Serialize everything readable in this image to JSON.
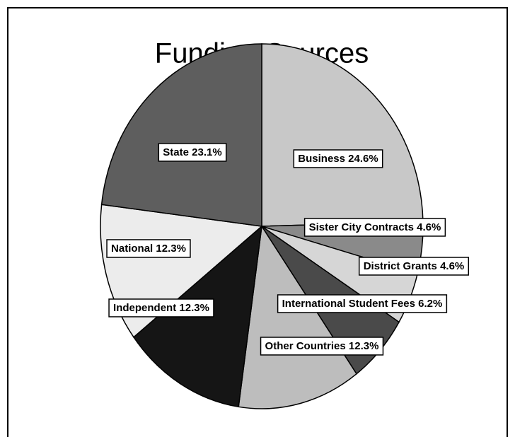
{
  "chart_data": {
    "type": "pie",
    "title": "Funding Sources",
    "categories": [
      "Business",
      "Sister City Contracts",
      "District Grants",
      "International Student Fees",
      "Other Countries",
      "Independent",
      "National",
      "State"
    ],
    "values": [
      24.6,
      4.6,
      4.6,
      6.2,
      12.3,
      12.3,
      12.3,
      23.1
    ],
    "value_labels": [
      "24.6%",
      "4.6%",
      "4.6%",
      "6.2%",
      "12.3%",
      "12.3%",
      "12.3%",
      "23.1%"
    ],
    "colors": [
      "#c8c8c8",
      "#8a8a8a",
      "#d6d6d6",
      "#4a4a4a",
      "#bdbdbd",
      "#151515",
      "#ececec",
      "#5e5e5e"
    ]
  }
}
